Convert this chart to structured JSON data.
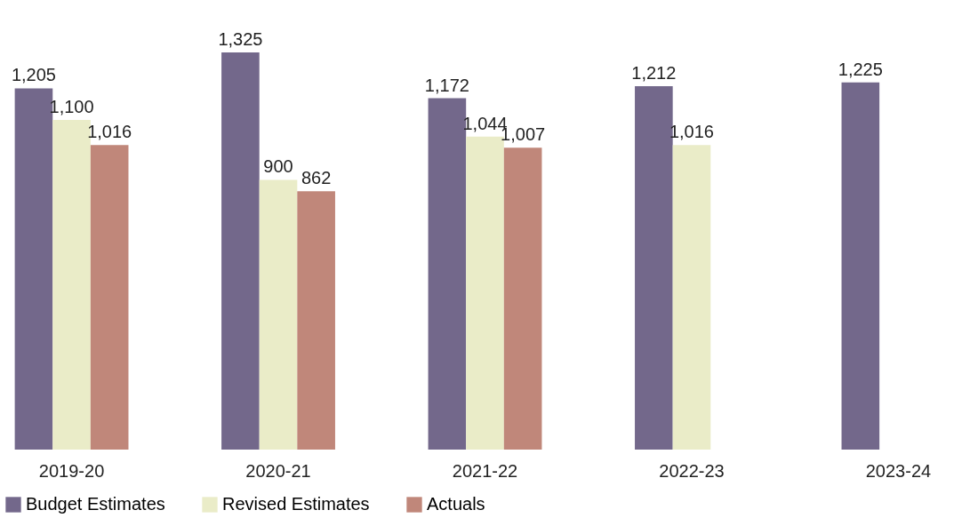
{
  "chart_data": {
    "type": "bar",
    "categories": [
      "2019-20",
      "2020-21",
      "2021-22",
      "2022-23",
      "2023-24"
    ],
    "series": [
      {
        "name": "Budget Estimates",
        "color": "#73688b",
        "values": [
          1205,
          1325,
          1172,
          1212,
          1225
        ],
        "value_labels": [
          "1,205",
          "1,325",
          "1,172",
          "1,212",
          "1,225"
        ]
      },
      {
        "name": "Revised Estimates",
        "color": "#eaecc8",
        "values": [
          1100,
          900,
          1044,
          1016,
          null
        ],
        "value_labels": [
          "1,100",
          "900",
          "1,044",
          "1,016",
          null
        ]
      },
      {
        "name": "Actuals",
        "color": "#c0877a",
        "values": [
          1016,
          862,
          1007,
          null,
          null
        ],
        "value_labels": [
          "1,016",
          "862",
          "1,007",
          null,
          null
        ]
      }
    ],
    "legend": "bottom",
    "grid": false
  }
}
